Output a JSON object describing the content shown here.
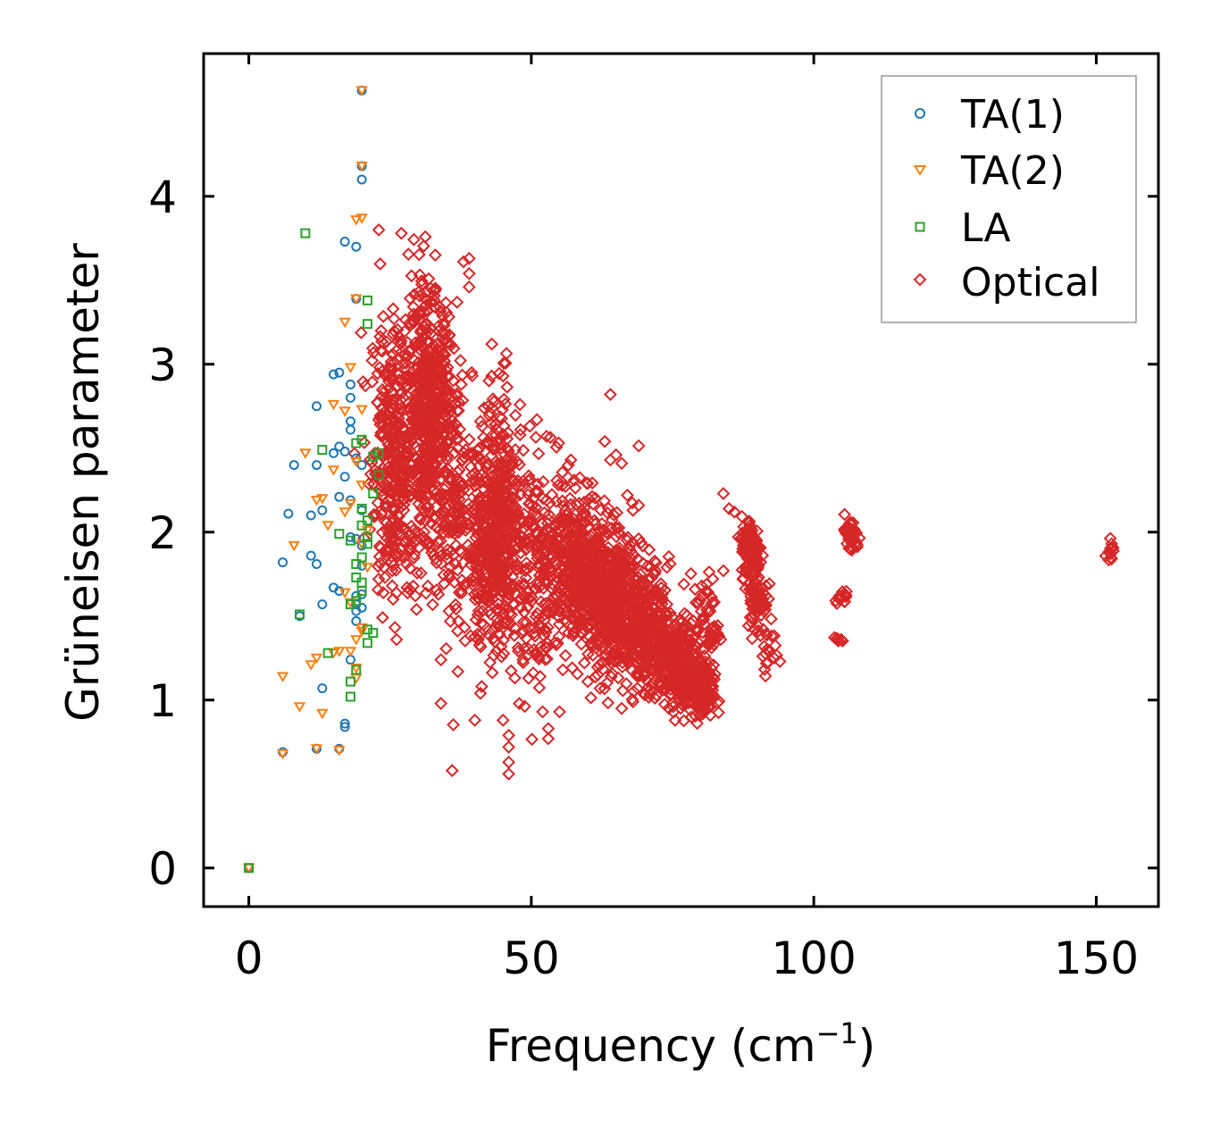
{
  "chart_data": {
    "type": "scatter",
    "title": "",
    "xlabel_main": "Frequency (cm",
    "xlabel_sup": "−1",
    "xlabel_end": ")",
    "ylabel": "Grüneisen parameter",
    "xlim": [
      -8,
      161
    ],
    "ylim": [
      -0.23,
      4.85
    ],
    "xticks": [
      0,
      50,
      100,
      150
    ],
    "yticks": [
      0,
      1,
      2,
      3,
      4
    ],
    "legend_position": "top-right",
    "series": [
      {
        "name": "TA(1)",
        "marker": "circle",
        "color": "#1f77b4",
        "points": [
          [
            0,
            0
          ],
          [
            6,
            0.69
          ],
          [
            6,
            1.82
          ],
          [
            7,
            2.11
          ],
          [
            8,
            2.4
          ],
          [
            9,
            1.5
          ],
          [
            11,
            1.86
          ],
          [
            11,
            2.1
          ],
          [
            12,
            0.71
          ],
          [
            12,
            1.81
          ],
          [
            12,
            2.4
          ],
          [
            12,
            2.75
          ],
          [
            13,
            1.57
          ],
          [
            13,
            1.07
          ],
          [
            13,
            2.13
          ],
          [
            15,
            1.67
          ],
          [
            15,
            2.94
          ],
          [
            15,
            2.47
          ],
          [
            16,
            1.65
          ],
          [
            16,
            2.21
          ],
          [
            16,
            2.51
          ],
          [
            16,
            2.95
          ],
          [
            16,
            0.71
          ],
          [
            17,
            0.84
          ],
          [
            17,
            0.86
          ],
          [
            17,
            2.33
          ],
          [
            17,
            2.48
          ],
          [
            17,
            3.73
          ],
          [
            18,
            2.61
          ],
          [
            18,
            2.66
          ],
          [
            18,
            2.8
          ],
          [
            18,
            2.88
          ],
          [
            18,
            1.97
          ],
          [
            18,
            1.24
          ],
          [
            19,
            1.57
          ],
          [
            19,
            1.53
          ],
          [
            19,
            1.47
          ],
          [
            19,
            1.62
          ],
          [
            19,
            3.7
          ],
          [
            19,
            3.39
          ],
          [
            19,
            2.44
          ],
          [
            20,
            1.63
          ],
          [
            20,
            1.55
          ],
          [
            20,
            4.1
          ],
          [
            20,
            4.63
          ],
          [
            20,
            4.18
          ],
          [
            20,
            2.4
          ],
          [
            20,
            1.92
          ],
          [
            19,
            1.96
          ],
          [
            18,
            2.19
          ],
          [
            20,
            2.13
          ],
          [
            20,
            1.8
          ]
        ]
      },
      {
        "name": "TA(2)",
        "marker": "triangle-down",
        "color": "#ff7f0e",
        "points": [
          [
            0,
            0
          ],
          [
            6,
            0.68
          ],
          [
            6,
            1.14
          ],
          [
            8,
            1.92
          ],
          [
            9,
            0.96
          ],
          [
            10,
            2.47
          ],
          [
            11,
            1.21
          ],
          [
            12,
            0.71
          ],
          [
            12,
            2.19
          ],
          [
            12,
            1.25
          ],
          [
            13,
            2.2
          ],
          [
            13,
            0.92
          ],
          [
            14,
            2.04
          ],
          [
            15,
            2.37
          ],
          [
            15,
            1.28
          ],
          [
            15,
            2.76
          ],
          [
            16,
            0.7
          ],
          [
            16,
            1.29
          ],
          [
            17,
            2.12
          ],
          [
            17,
            1.64
          ],
          [
            17,
            2.72
          ],
          [
            17,
            3.25
          ],
          [
            18,
            1.29
          ],
          [
            18,
            1.58
          ],
          [
            18,
            2.17
          ],
          [
            18,
            2.98
          ],
          [
            19,
            2.42
          ],
          [
            19,
            3.39
          ],
          [
            19,
            1.13
          ],
          [
            19,
            1.19
          ],
          [
            19,
            1.36
          ],
          [
            19,
            3.86
          ],
          [
            20,
            4.63
          ],
          [
            20,
            4.18
          ],
          [
            20,
            3.87
          ],
          [
            20,
            2.73
          ],
          [
            20,
            1.43
          ],
          [
            20,
            1.41
          ],
          [
            20,
            1.93
          ],
          [
            20,
            2.28
          ],
          [
            21,
            1.79
          ],
          [
            21,
            2.01
          ]
        ]
      },
      {
        "name": "LA",
        "marker": "square",
        "color": "#2ca02c",
        "points": [
          [
            0,
            0
          ],
          [
            9,
            1.51
          ],
          [
            10,
            3.78
          ],
          [
            14,
            1.28
          ],
          [
            13,
            2.49
          ],
          [
            16,
            1.99
          ],
          [
            18,
            1.02
          ],
          [
            18,
            1.11
          ],
          [
            18,
            1.57
          ],
          [
            18,
            1.95
          ],
          [
            19,
            2.53
          ],
          [
            19,
            1.18
          ],
          [
            19,
            1.73
          ],
          [
            19,
            1.81
          ],
          [
            19,
            1.59
          ],
          [
            20,
            2.55
          ],
          [
            20,
            2.04
          ],
          [
            20,
            1.85
          ],
          [
            20,
            1.65
          ],
          [
            20,
            1.7
          ],
          [
            20,
            2.14
          ],
          [
            21,
            3.38
          ],
          [
            21,
            3.24
          ],
          [
            21,
            1.42
          ],
          [
            21,
            1.34
          ],
          [
            21,
            1.93
          ],
          [
            21,
            1.97
          ],
          [
            21,
            2.07
          ],
          [
            22,
            2.23
          ],
          [
            22,
            2.45
          ],
          [
            22,
            1.4
          ],
          [
            23,
            2.34
          ],
          [
            23,
            2.47
          ]
        ]
      },
      {
        "name": "Optical",
        "marker": "diamond",
        "color": "#d62728",
        "clusters": [
          {
            "cx": 26,
            "cy": 2.45,
            "sx": 3,
            "sy": 0.55,
            "n": 400
          },
          {
            "cx": 32,
            "cy": 2.75,
            "sx": 2.5,
            "sy": 0.45,
            "n": 450
          },
          {
            "cx": 36,
            "cy": 2.25,
            "sx": 3.5,
            "sy": 0.55,
            "n": 220
          },
          {
            "cx": 43,
            "cy": 1.9,
            "sx": 3,
            "sy": 0.4,
            "n": 380
          },
          {
            "cx": 45,
            "cy": 2.2,
            "sx": 2,
            "sy": 0.45,
            "n": 160
          },
          {
            "cx": 51,
            "cy": 1.75,
            "sx": 3.5,
            "sy": 0.45,
            "n": 220
          },
          {
            "cx": 58,
            "cy": 1.8,
            "sx": 3,
            "sy": 0.3,
            "n": 380
          },
          {
            "cx": 64,
            "cy": 1.6,
            "sx": 3.5,
            "sy": 0.3,
            "n": 420
          },
          {
            "cx": 70,
            "cy": 1.45,
            "sx": 3,
            "sy": 0.25,
            "n": 320
          },
          {
            "cx": 76,
            "cy": 1.2,
            "sx": 2.5,
            "sy": 0.18,
            "n": 260
          },
          {
            "cx": 80,
            "cy": 1.05,
            "sx": 1.5,
            "sy": 0.12,
            "n": 150
          },
          {
            "cx": 81,
            "cy": 1.45,
            "sx": 1.5,
            "sy": 0.2,
            "n": 60
          },
          {
            "cx": 89,
            "cy": 1.9,
            "sx": 1.2,
            "sy": 0.12,
            "n": 130
          },
          {
            "cx": 90,
            "cy": 1.6,
            "sx": 1.2,
            "sy": 0.15,
            "n": 70
          },
          {
            "cx": 92,
            "cy": 1.3,
            "sx": 1.2,
            "sy": 0.08,
            "n": 16
          },
          {
            "cx": 106.5,
            "cy": 1.98,
            "sx": 1,
            "sy": 0.07,
            "n": 45
          },
          {
            "cx": 105,
            "cy": 1.62,
            "sx": 0.8,
            "sy": 0.03,
            "n": 14
          },
          {
            "cx": 104.3,
            "cy": 1.36,
            "sx": 0.4,
            "sy": 0.01,
            "n": 8
          },
          {
            "cx": 152.5,
            "cy": 1.9,
            "sx": 0.4,
            "sy": 0.05,
            "n": 14
          }
        ],
        "outliers": [
          [
            36,
            0.58
          ],
          [
            46,
            0.56
          ],
          [
            46,
            0.63
          ],
          [
            46,
            0.72
          ],
          [
            45,
            0.88
          ],
          [
            46,
            0.79
          ],
          [
            40,
            0.88
          ],
          [
            52,
            0.93
          ],
          [
            53,
            0.77
          ],
          [
            53,
            0.83
          ],
          [
            55,
            0.93
          ],
          [
            64,
            2.82
          ],
          [
            27,
            3.78
          ],
          [
            33,
            3.65
          ],
          [
            39,
            3.63
          ],
          [
            39,
            3.54
          ],
          [
            39,
            3.46
          ],
          [
            38,
            3.61
          ],
          [
            23,
            3.8
          ],
          [
            25,
            2.35
          ],
          [
            28,
            1.67
          ],
          [
            34,
            1.24
          ],
          [
            34,
            0.98
          ],
          [
            37,
            1.17
          ],
          [
            41,
            1.04
          ],
          [
            45,
            2.93
          ],
          [
            51,
            2.67
          ],
          [
            60,
            1.11
          ],
          [
            66,
            0.95
          ],
          [
            69,
            1.96
          ],
          [
            69,
            2.16
          ],
          [
            72,
            1.77
          ],
          [
            77,
            1.69
          ],
          [
            79,
            1.66
          ],
          [
            82,
            1.58
          ],
          [
            84,
            2.23
          ],
          [
            85,
            2.14
          ],
          [
            84,
            1.77
          ],
          [
            93,
            1.25
          ],
          [
            94,
            1.23
          ],
          [
            41,
            2.66
          ],
          [
            48,
            2.76
          ],
          [
            65,
            2.46
          ],
          [
            71,
            1.06
          ],
          [
            72,
            1.25
          ],
          [
            57,
            2.43
          ],
          [
            60,
            2.29
          ],
          [
            63,
            2.54
          ],
          [
            64,
            2.43
          ],
          [
            66,
            2.41
          ],
          [
            67,
            2.22
          ],
          [
            68,
            2.13
          ],
          [
            74,
            1.79
          ],
          [
            74,
            1.5
          ],
          [
            43,
            3.12
          ],
          [
            48,
            2.58
          ],
          [
            43,
            2.93
          ],
          [
            24,
            2.07
          ],
          [
            23,
            1.72
          ]
        ]
      }
    ]
  }
}
